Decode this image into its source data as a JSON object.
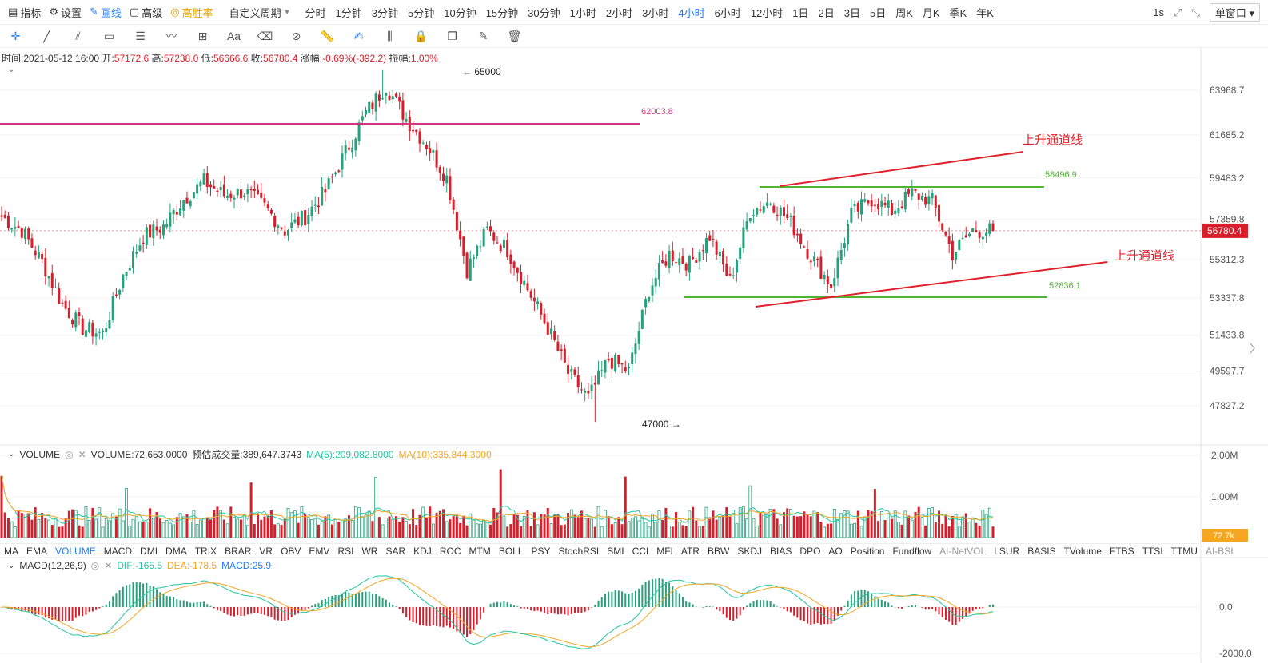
{
  "topbar": {
    "items": [
      {
        "label": "指标",
        "icon": "indicator-icon"
      },
      {
        "label": "设置",
        "icon": "gear-icon"
      },
      {
        "label": "画线",
        "icon": "draw-icon"
      },
      {
        "label": "高级",
        "icon": "advanced-icon"
      },
      {
        "label": "高胜率",
        "icon": "coin-icon"
      }
    ],
    "custom_period": "自定义周期",
    "periods": [
      "分时",
      "1分钟",
      "3分钟",
      "5分钟",
      "10分钟",
      "15分钟",
      "30分钟",
      "1小时",
      "2小时",
      "3小时",
      "4小时",
      "6小时",
      "12小时",
      "1日",
      "2日",
      "3日",
      "5日",
      "周K",
      "月K",
      "季K",
      "年K"
    ],
    "active_period": "4小时",
    "refresh": "1s",
    "window": "单窗口"
  },
  "info": {
    "time_label": "时间:",
    "time": "2021-05-12 16:00",
    "open_label": "开:",
    "open": "57172.6",
    "high_label": "高:",
    "high": "57238.0",
    "low_label": "低:",
    "low": "56666.6",
    "close_label": "收:",
    "close": "56780.4",
    "change_label": "涨幅:",
    "change": "-0.69%(-392.2)",
    "amp_label": "振幅:",
    "amp": "1.00%"
  },
  "volume_legend": {
    "name": "VOLUME",
    "vol_label": "VOLUME:72,653.0000",
    "est_label": "预估成交量:389,647.3743",
    "ma5_label": "MA(5):209,082.8000",
    "ma10_label": "MA(10):335,844.3000"
  },
  "indicator_tabs": [
    "MA",
    "EMA",
    "VOLUME",
    "MACD",
    "DMI",
    "DMA",
    "TRIX",
    "BRAR",
    "VR",
    "OBV",
    "EMV",
    "RSI",
    "WR",
    "SAR",
    "KDJ",
    "ROC",
    "MTM",
    "BOLL",
    "PSY",
    "StochRSI",
    "SMI",
    "CCI",
    "MFI",
    "ATR",
    "BBW",
    "SKDJ",
    "BIAS",
    "DPO",
    "AO",
    "Position",
    "Fundflow",
    "AI-NetVOL",
    "LSUR",
    "BASIS",
    "TVolume",
    "FTBS",
    "TTSI",
    "TTMU",
    "AI-BSI"
  ],
  "active_indicator": "VOLUME",
  "macd_legend": {
    "name": "MACD(12,26,9)",
    "dif": "DIF:-165.5",
    "dea": "DEA:-178.5",
    "macd": "MACD:25.9"
  },
  "chart_data": {
    "type": "candlestick",
    "price_axis_ticks": [
      "63968.7",
      "61685.2",
      "59483.2",
      "57359.8",
      "55312.3",
      "53337.8",
      "51433.8",
      "49597.7",
      "47827.2"
    ],
    "last_price": "56780.4",
    "annotations": {
      "high_marker": "65000",
      "low_marker": "47000",
      "hline_top": "62003.8",
      "hline_res": "58496.9",
      "hline_sup": "52836.1",
      "channel_label_upper": "上升通道线",
      "channel_label_lower": "上升通道线"
    },
    "volume_axis_ticks": [
      "2.00M",
      "1.00M"
    ],
    "volume_last": "72.7k",
    "macd_axis_ticks": [
      "0.0",
      "-2000.0"
    ],
    "price_range": [
      46500,
      65600
    ],
    "key_closes": [
      57500,
      56800,
      55200,
      53000,
      51800,
      51500,
      54500,
      56500,
      57000,
      58400,
      59300,
      58600,
      58800,
      58000,
      56800,
      57500,
      58800,
      60800,
      62800,
      64200,
      62500,
      61200,
      59500,
      54800,
      56800,
      55800,
      53800,
      51800,
      49500,
      48200,
      50200,
      49600,
      53800,
      55600,
      55100,
      56500,
      54200,
      57800,
      58300,
      57200,
      55500,
      54000,
      57600,
      58400,
      57800,
      58700,
      58300,
      55600,
      56800,
      56780
    ]
  },
  "colors": {
    "up": "#26a17b",
    "down": "#d81e2a",
    "magenta": "#d63384",
    "green": "#52b435",
    "channel": "#e0202a",
    "ma5": "#1fc7a0",
    "ma10": "#f5a623"
  }
}
